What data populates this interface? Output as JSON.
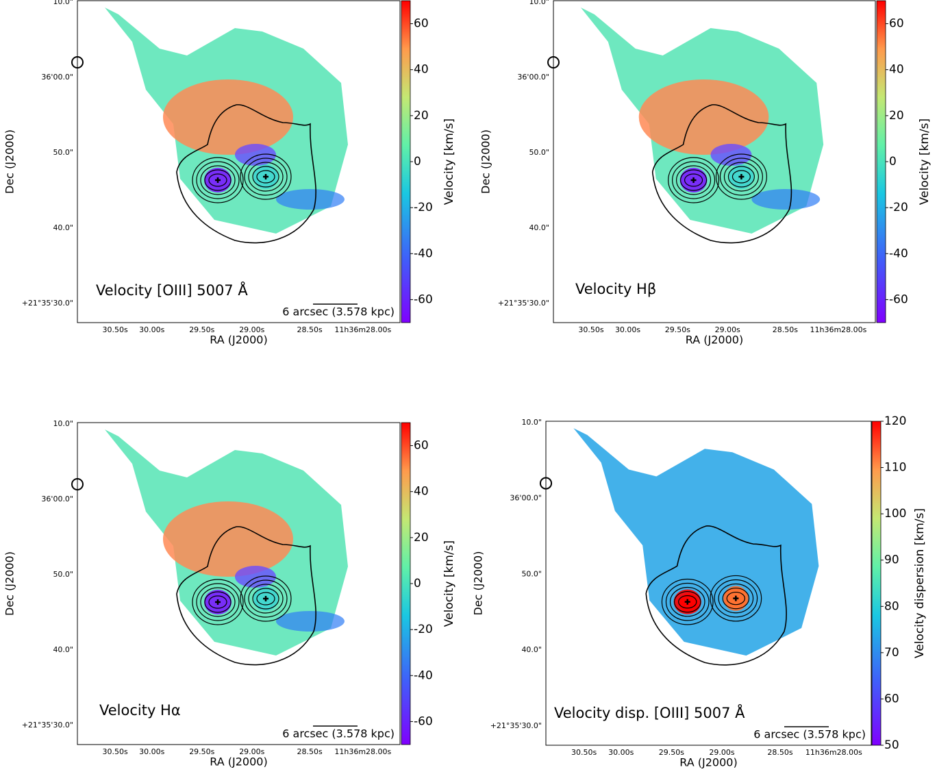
{
  "chart_data": [
    {
      "type": "heatmap",
      "title": "Velocity [OIII] 5007 Å",
      "x_label": "RA (J2000)",
      "y_label": "Dec (J2000)",
      "x_tick_labels": [
        "30.50s",
        "30.00s",
        "29.50s",
        "29.00s",
        "28.50s",
        "11h36m28.00s"
      ],
      "y_tick_labels": [
        "10.0\"",
        "36'00.0\"",
        "50.0\"",
        "40.0\"",
        "+21°35'30.0\""
      ],
      "scale_bar_label": "6 arcsec (3.578 kpc)",
      "colorbar": {
        "label": "Velocity [km/s]",
        "lim": [
          -70,
          70
        ],
        "ticks": [
          -60,
          -40,
          -20,
          0,
          20,
          40,
          60
        ],
        "colormap": "rainbow"
      }
    },
    {
      "type": "heatmap",
      "title": "Velocity Hβ",
      "x_label": "RA (J2000)",
      "y_label": "Dec (J2000)",
      "x_tick_labels": [
        "30.50s",
        "30.00s",
        "29.50s",
        "29.00s",
        "28.50s",
        "11h36m28.00s"
      ],
      "y_tick_labels": [
        "10.0\"",
        "36'00.0\"",
        "50.0\"",
        "40.0\"",
        "+21°35'30.0\""
      ],
      "colorbar": {
        "label": "Velocity [km/s]",
        "lim": [
          -70,
          70
        ],
        "ticks": [
          -60,
          -40,
          -20,
          0,
          20,
          40,
          60
        ],
        "colormap": "rainbow"
      }
    },
    {
      "type": "heatmap",
      "title": "Velocity Hα",
      "x_label": "RA (J2000)",
      "y_label": "Dec (J2000)",
      "x_tick_labels": [
        "30.50s",
        "30.00s",
        "29.50s",
        "29.00s",
        "28.50s",
        "11h36m28.00s"
      ],
      "y_tick_labels": [
        "10.0\"",
        "36'00.0\"",
        "50.0\"",
        "40.0\"",
        "+21°35'30.0\""
      ],
      "scale_bar_label": "6 arcsec (3.578 kpc)",
      "colorbar": {
        "label": "Velocity [km/s]",
        "lim": [
          -70,
          70
        ],
        "ticks": [
          -60,
          -40,
          -20,
          0,
          20,
          40,
          60
        ],
        "colormap": "rainbow"
      }
    },
    {
      "type": "heatmap",
      "title": "Velocity disp. [OIII] 5007 Å",
      "x_label": "RA (J2000)",
      "y_label": "Dec (J2000)",
      "x_tick_labels": [
        "30.50s",
        "30.00s",
        "29.50s",
        "29.00s",
        "28.50s",
        "11h36m28.00s"
      ],
      "y_tick_labels": [
        "10.0\"",
        "36'00.0\"",
        "50.0\"",
        "40.0\"",
        "+21°35'30.0\""
      ],
      "scale_bar_label": "6 arcsec (3.578 kpc)",
      "colorbar": {
        "label": "Velocity dispersion [km/s]",
        "lim": [
          50,
          120
        ],
        "ticks": [
          50,
          60,
          70,
          80,
          90,
          100,
          110,
          120
        ],
        "colormap": "rainbow"
      }
    }
  ]
}
